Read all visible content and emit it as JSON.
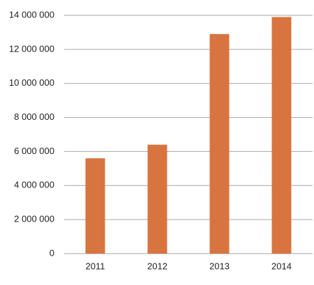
{
  "chart_data": {
    "type": "bar",
    "categories": [
      "2011",
      "2012",
      "2013",
      "2014"
    ],
    "values": [
      5600000,
      6400000,
      12900000,
      13900000
    ],
    "color": "#d8743f",
    "ylim": [
      0,
      14000000
    ],
    "yticks": [
      0,
      {
        "value": 2000000,
        "label": "2 000 000"
      },
      {
        "value": 4000000,
        "label": "4 000 000"
      },
      {
        "value": 6000000,
        "label": "6 000 000"
      },
      {
        "value": 8000000,
        "label": "8 000 000"
      },
      {
        "value": 10000000,
        "label": "10 000 000"
      },
      {
        "value": 12000000,
        "label": "12 000 000"
      },
      {
        "value": 14000000,
        "label": "14 000 000"
      }
    ],
    "grid": true
  }
}
